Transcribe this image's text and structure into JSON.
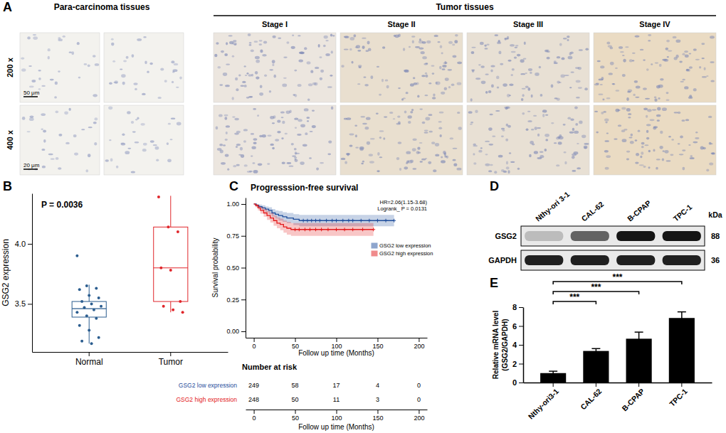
{
  "panel_labels": [
    "A",
    "B",
    "C",
    "D",
    "E"
  ],
  "histology": {
    "group_titles": [
      "Para-carcinoma tissues",
      "Tumor tissues"
    ],
    "columns": [
      "Stage I",
      "Stage II",
      "Stage III",
      "Stage IV"
    ],
    "rows": [
      "200 x",
      "400 x"
    ],
    "scale_bars": [
      "50 μm",
      "20 μm"
    ]
  },
  "western_blot": {
    "lanes": [
      "Nthy-ori 3-1",
      "CAL-62",
      "B-CPAP",
      "TPC-1"
    ],
    "unit": "kDa",
    "proteins": [
      {
        "name": "GSG2",
        "kda": 88,
        "band_intensity": [
          0.2,
          0.6,
          0.95,
          0.95
        ]
      },
      {
        "name": "GAPDH",
        "kda": 36,
        "band_intensity": [
          0.9,
          0.9,
          0.9,
          0.9
        ]
      }
    ]
  },
  "chart_data": [
    {
      "type": "box",
      "categories": [
        "Normal",
        "Tumor"
      ],
      "ylabel": "GSG2 expression",
      "annotations": [
        "P = 0.0036"
      ],
      "ylim": [
        3.1,
        4.42
      ],
      "yticks": [
        3.5,
        {
          "value": 4,
          "label": "4.0"
        }
      ],
      "boxes": [
        {
          "color": "#2b5d8f",
          "q1": 3.39,
          "median": 3.46,
          "q3": 3.52,
          "whisker_low": 3.17,
          "whisker_high": 3.66,
          "points": [
            3.9,
            3.65,
            3.63,
            3.62,
            3.57,
            3.55,
            3.52,
            3.5,
            3.48,
            3.47,
            3.45,
            3.43,
            3.4,
            3.38,
            3.32,
            3.28,
            3.22,
            3.19,
            3.17
          ]
        },
        {
          "color": "#e0262b",
          "q1": 3.52,
          "median": 3.8,
          "q3": 4.14,
          "whisker_low": 3.43,
          "whisker_high": 4.4,
          "points": [
            4.39,
            4.14,
            4.1,
            3.8,
            3.78,
            3.52,
            3.48,
            3.45,
            3.43
          ]
        }
      ]
    },
    {
      "type": "line",
      "title": "Progresssion-free survival",
      "xlabel": "Follow up time (Months)",
      "ylabel": "Survival probability",
      "xlim": [
        -10,
        210
      ],
      "ylim": [
        -0.05,
        1.05
      ],
      "xticks": [
        0,
        50,
        100,
        150,
        200
      ],
      "yticks": [
        {
          "value": 0,
          "label": "0.00"
        },
        {
          "value": 0.25,
          "label": "0.25"
        },
        {
          "value": 0.5,
          "label": "0.50"
        },
        {
          "value": 0.75,
          "label": "0.75"
        },
        {
          "value": 1,
          "label": "1.00"
        }
      ],
      "legend": "right",
      "annotations": [
        "HR=2.06(1.15-3.68)",
        "Logrank_ P = 0.0131"
      ],
      "series": [
        {
          "name": "GSG2 low expression",
          "color": "#1f4e9c",
          "line_style": "step",
          "marker": "plus",
          "x": [
            0,
            3,
            6,
            10,
            14,
            18,
            22,
            26,
            30,
            35,
            40,
            48,
            55,
            170
          ],
          "values": [
            1,
            0.99,
            0.98,
            0.97,
            0.96,
            0.95,
            0.93,
            0.92,
            0.91,
            0.9,
            0.89,
            0.88,
            0.87,
            0.87
          ],
          "lower": [
            1,
            0.98,
            0.965,
            0.95,
            0.935,
            0.92,
            0.9,
            0.885,
            0.87,
            0.86,
            0.85,
            0.835,
            0.825,
            0.825
          ],
          "upper": [
            1,
            1,
            0.995,
            0.99,
            0.98,
            0.975,
            0.96,
            0.95,
            0.945,
            0.935,
            0.93,
            0.92,
            0.915,
            0.915
          ],
          "censored": [
            60,
            65,
            70,
            75,
            80,
            88,
            95,
            100,
            108,
            115,
            120,
            130,
            140,
            150,
            160,
            170
          ]
        },
        {
          "name": "GSG2 high expression",
          "color": "#e31a1c",
          "line_style": "step",
          "marker": "plus",
          "x": [
            0,
            2,
            5,
            8,
            12,
            16,
            20,
            24,
            28,
            32,
            36,
            40,
            45,
            145
          ],
          "values": [
            1,
            0.99,
            0.97,
            0.95,
            0.93,
            0.91,
            0.89,
            0.87,
            0.85,
            0.84,
            0.82,
            0.81,
            0.8,
            0.8
          ],
          "lower": [
            1,
            0.975,
            0.95,
            0.925,
            0.9,
            0.875,
            0.855,
            0.83,
            0.81,
            0.795,
            0.775,
            0.76,
            0.75,
            0.75
          ],
          "upper": [
            1,
            1,
            0.99,
            0.975,
            0.96,
            0.945,
            0.93,
            0.91,
            0.895,
            0.885,
            0.87,
            0.86,
            0.85,
            0.85
          ],
          "censored": [
            50,
            55,
            62,
            68,
            75,
            82,
            90,
            100,
            110,
            120,
            132,
            145
          ]
        }
      ],
      "risk_table": {
        "title": "Number at risk",
        "xlabel": "Follow up time (Months)",
        "x": [
          0,
          50,
          100,
          150,
          200
        ],
        "rows": [
          {
            "name": "GSG2 low expression",
            "values": [
              249,
              58,
              17,
              4,
              0
            ]
          },
          {
            "name": "GSG2 high expression",
            "values": [
              248,
              50,
              11,
              3,
              0
            ]
          }
        ]
      }
    },
    {
      "type": "bar",
      "categories": [
        "Nthy-ori3-1",
        "CAL-62",
        "B-CPAP",
        "TPC-1"
      ],
      "values": [
        1,
        3.35,
        4.65,
        6.85
      ],
      "errors": [
        0.2,
        0.25,
        0.7,
        0.65
      ],
      "color": "#000000",
      "ylabel": [
        "Relative mRNA level",
        "(GSG2/GAPDH)"
      ],
      "ylim": [
        0,
        8
      ],
      "yticks": [
        0,
        2,
        4,
        6,
        8
      ],
      "significance": [
        {
          "from": 0,
          "to": 1,
          "label": "***"
        },
        {
          "from": 0,
          "to": 2,
          "label": "***"
        },
        {
          "from": 0,
          "to": 3,
          "label": "***"
        }
      ]
    }
  ]
}
